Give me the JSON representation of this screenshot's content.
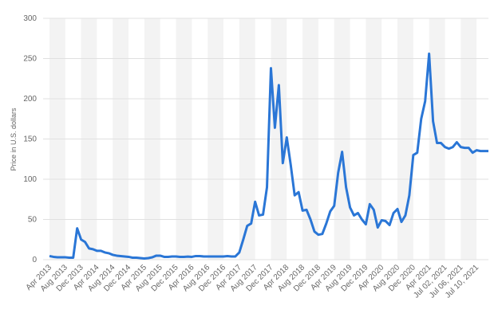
{
  "chart_data": {
    "type": "line",
    "y_label": "Price in U.S. dollars",
    "categories": [
      "Apr 2013",
      null,
      null,
      null,
      "Aug 2013",
      null,
      null,
      null,
      "Dec 2013",
      null,
      null,
      null,
      "Apr 2014",
      null,
      null,
      null,
      "Aug 2014",
      null,
      null,
      null,
      "Dec 2014",
      null,
      null,
      null,
      "Apr 2015",
      null,
      null,
      null,
      "Aug 2015",
      null,
      null,
      null,
      "Dec 2015",
      null,
      null,
      null,
      "Apr 2016",
      null,
      null,
      null,
      "Aug 2016",
      null,
      null,
      null,
      "Dec 2016",
      null,
      null,
      null,
      "Apr 2017",
      null,
      null,
      null,
      "Aug 2017",
      null,
      null,
      null,
      "Dec 2017",
      null,
      null,
      null,
      "Apr 2018",
      null,
      null,
      null,
      "Aug 2018",
      null,
      null,
      null,
      "Dec 2018",
      null,
      null,
      null,
      "Apr 2019",
      null,
      null,
      null,
      "Aug 2019",
      null,
      null,
      null,
      "Dec 2019",
      null,
      null,
      null,
      "Apr 2020",
      null,
      null,
      null,
      "Aug 2020",
      null,
      null,
      null,
      "Dec 2020",
      null,
      null,
      null,
      "Apr 2021",
      null,
      null,
      null,
      "Jul 02, 2021",
      null,
      null,
      null,
      "Jul 06, 2021",
      null,
      null,
      null,
      "Jul 10, 2021",
      null,
      null,
      null
    ],
    "series": [
      {
        "name": "Price",
        "color": "#2a76d6",
        "values": [
          4.5,
          3.5,
          3,
          3,
          3,
          2.5,
          2.5,
          39,
          25,
          22,
          14,
          13,
          11,
          11,
          9,
          8,
          6,
          5,
          4.5,
          4,
          3.5,
          2.5,
          2.5,
          2,
          1.5,
          2,
          3,
          5,
          5,
          3.5,
          3.5,
          4,
          4,
          3.5,
          3.5,
          3.8,
          3.5,
          4.5,
          4.5,
          4,
          4,
          4,
          4,
          4,
          4,
          4.5,
          4,
          4,
          9,
          25,
          42,
          45,
          72,
          55,
          56,
          90,
          238,
          164,
          217,
          120,
          152,
          118,
          80,
          84,
          61,
          62,
          50,
          35,
          31,
          32,
          45,
          60,
          67,
          108,
          134,
          90,
          65,
          55,
          58,
          50,
          44,
          69,
          62,
          40,
          49,
          48,
          43,
          58,
          63,
          47,
          55,
          80,
          130,
          133,
          175,
          197,
          256,
          172,
          145,
          145,
          140,
          138,
          140,
          146,
          140,
          139,
          139,
          133,
          136,
          135,
          135,
          135
        ]
      }
    ],
    "ylim": [
      0,
      300
    ],
    "yticks": [
      0,
      50,
      100,
      150,
      200,
      250,
      300
    ],
    "grid": true
  }
}
